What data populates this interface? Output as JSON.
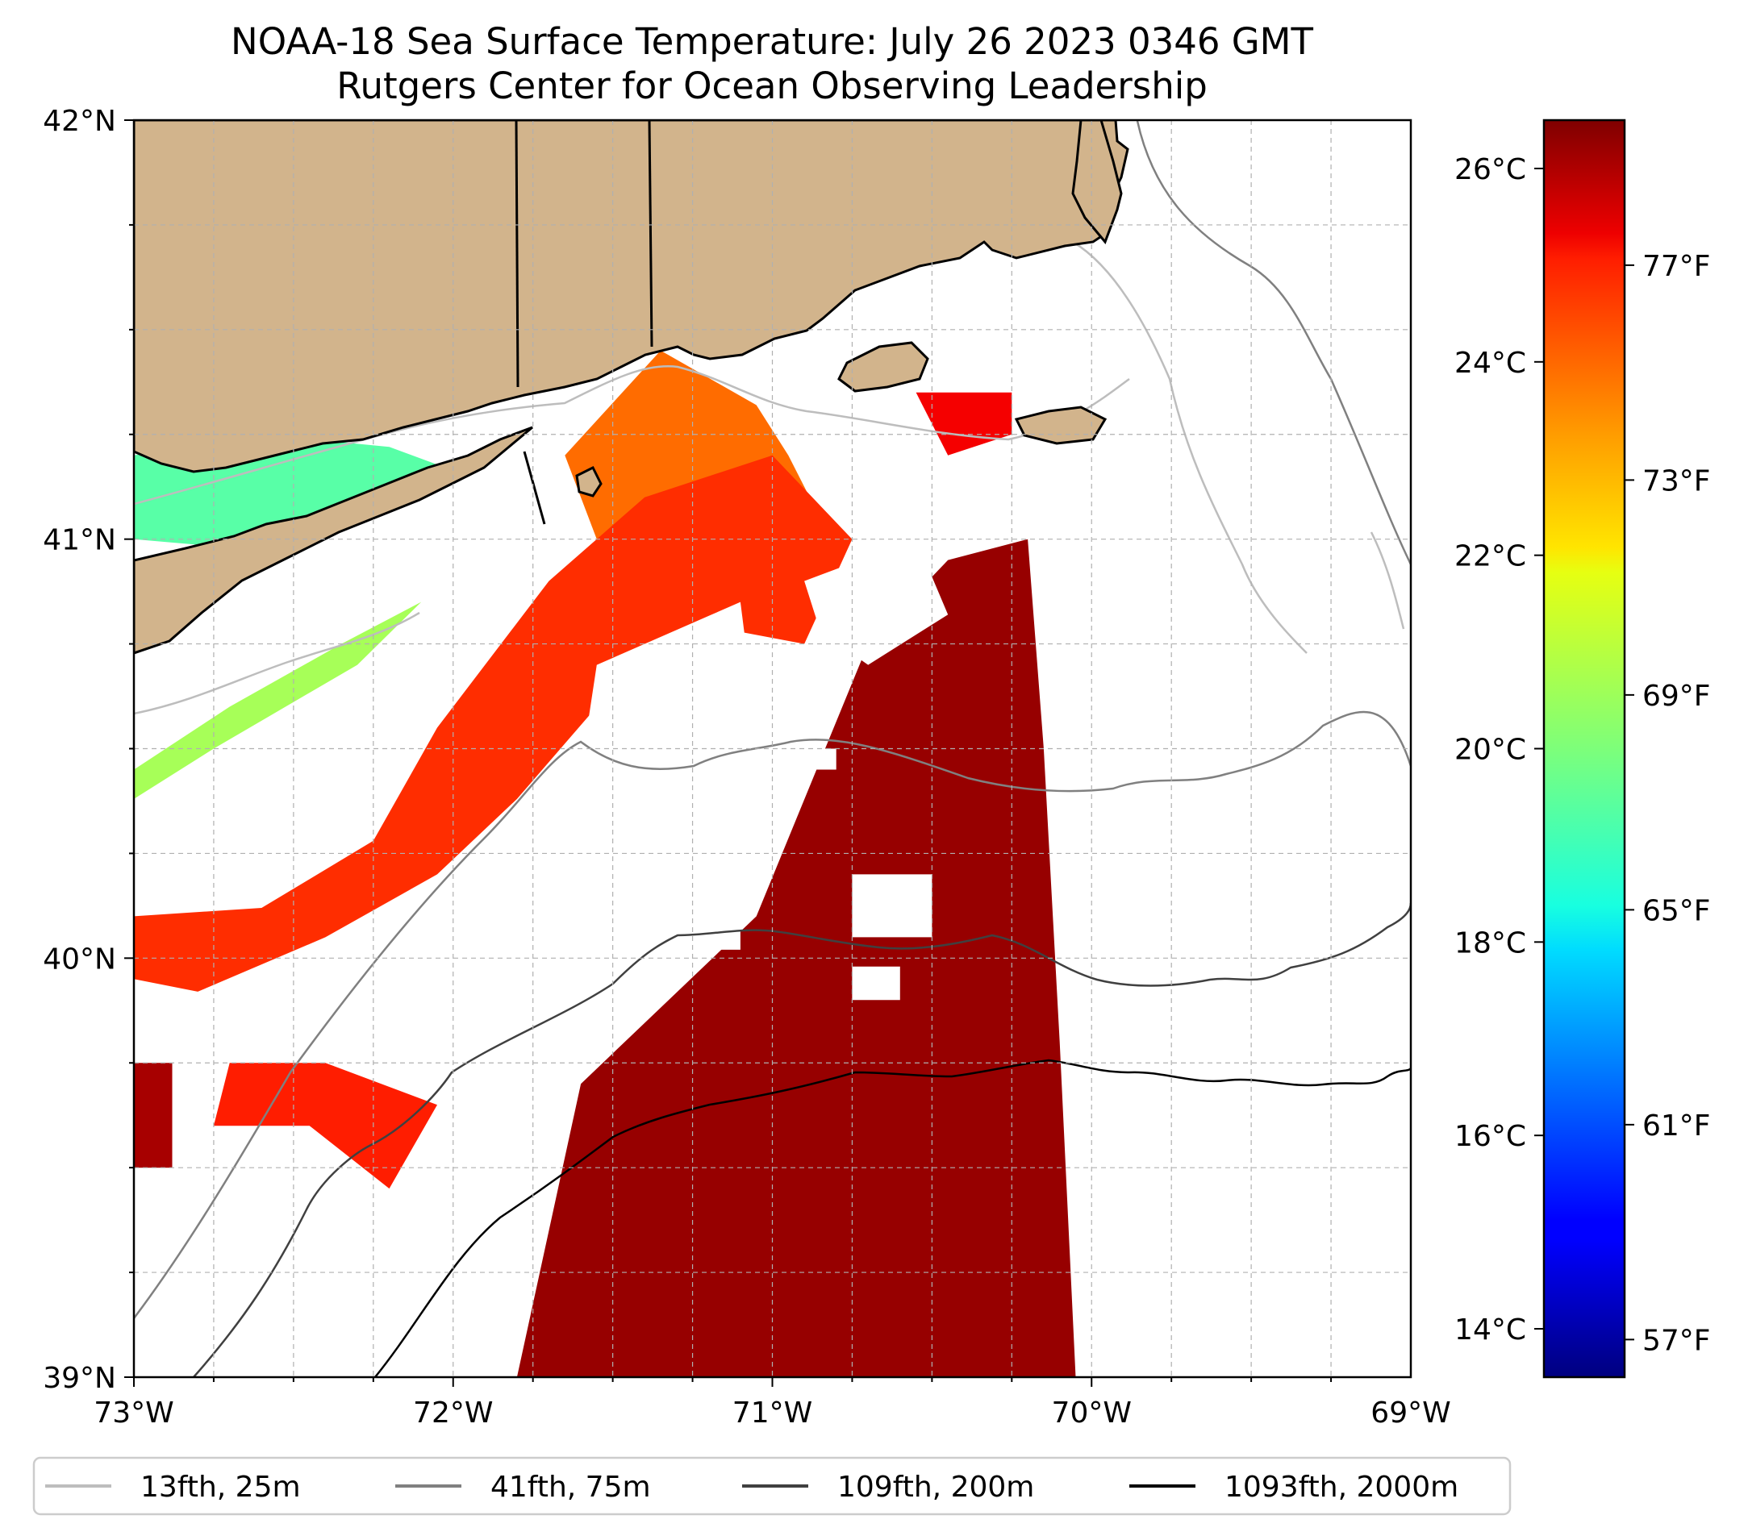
{
  "title": {
    "line1": "NOAA-18 Sea Surface Temperature: July 26 2023 0346 GMT",
    "line2": "Rutgers Center for Ocean Observing Leadership"
  },
  "colors": {
    "land": "#D2B48C",
    "coast": "#000000",
    "grid": "#b0b0b0",
    "iso25": "#bdbdbd",
    "iso75": "#808080",
    "iso200": "#404040",
    "iso2000": "#000000"
  },
  "chart_data": {
    "type": "heatmap",
    "xlim": [
      -73,
      -69
    ],
    "ylim": [
      39,
      42
    ],
    "x_ticks": [
      {
        "value": -73,
        "label": "73°W"
      },
      {
        "value": -72,
        "label": "72°W"
      },
      {
        "value": -71,
        "label": "71°W"
      },
      {
        "value": -70,
        "label": "70°W"
      },
      {
        "value": -69,
        "label": "69°W"
      }
    ],
    "y_ticks": [
      {
        "value": 42,
        "label": "42°N"
      },
      {
        "value": 41,
        "label": "41°N"
      },
      {
        "value": 40,
        "label": "40°N"
      },
      {
        "value": 39,
        "label": "39°N"
      }
    ],
    "colorbar": {
      "colormap": "jet",
      "min_c": 13.5,
      "max_c": 26.5,
      "c_ticks": [
        {
          "value": 14,
          "label": "14°C"
        },
        {
          "value": 16,
          "label": "16°C"
        },
        {
          "value": 18,
          "label": "18°C"
        },
        {
          "value": 20,
          "label": "20°C"
        },
        {
          "value": 22,
          "label": "22°C"
        },
        {
          "value": 24,
          "label": "24°C"
        },
        {
          "value": 26,
          "label": "26°C"
        }
      ],
      "f_ticks": [
        {
          "value": 57,
          "label": "57°F"
        },
        {
          "value": 61,
          "label": "61°F"
        },
        {
          "value": 65,
          "label": "65°F"
        },
        {
          "value": 69,
          "label": "69°F"
        },
        {
          "value": 73,
          "label": "73°F"
        },
        {
          "value": 77,
          "label": "77°F"
        }
      ]
    },
    "legend": [
      {
        "label": "13fth, 25m",
        "color": "#bdbdbd"
      },
      {
        "label": "41fth, 75m",
        "color": "#808080"
      },
      {
        "label": "109fth, 200m",
        "color": "#404040"
      },
      {
        "label": "1093fth, 2000m",
        "color": "#000000"
      }
    ],
    "sst_regions": [
      {
        "name": "long-island-sound",
        "temp_c": 19.5,
        "points": [
          [
            -73,
            41.2
          ],
          [
            -72.6,
            41.25
          ],
          [
            -72.2,
            41.22
          ],
          [
            -71.95,
            41.15
          ],
          [
            -72.25,
            41.05
          ],
          [
            -72.7,
            40.98
          ],
          [
            -73,
            41.0
          ]
        ]
      },
      {
        "name": "block-island-sound",
        "temp_c": 23.5,
        "points": [
          [
            -71.65,
            41.2
          ],
          [
            -71.35,
            41.45
          ],
          [
            -71.05,
            41.32
          ],
          [
            -70.95,
            41.2
          ],
          [
            -70.85,
            41.05
          ],
          [
            -71.25,
            40.95
          ],
          [
            -71.55,
            41.0
          ]
        ]
      },
      {
        "name": "shelf-band",
        "temp_c": 24.3,
        "points": [
          [
            -72.05,
            40.55
          ],
          [
            -71.7,
            40.9
          ],
          [
            -71.4,
            41.1
          ],
          [
            -71.0,
            41.2
          ],
          [
            -70.75,
            41.0
          ],
          [
            -70.9,
            40.75
          ],
          [
            -71.25,
            40.8
          ],
          [
            -71.55,
            40.6
          ],
          [
            -71.8,
            40.38
          ],
          [
            -72.05,
            40.2
          ],
          [
            -72.4,
            40.05
          ],
          [
            -72.8,
            39.92
          ],
          [
            -73,
            39.95
          ],
          [
            -73,
            40.1
          ],
          [
            -72.6,
            40.12
          ],
          [
            -72.25,
            40.28
          ]
        ]
      },
      {
        "name": "nearshore-li",
        "temp_c": 20.5,
        "points": [
          [
            -72.75,
            40.5
          ],
          [
            -72.3,
            40.7
          ],
          [
            -72.1,
            40.85
          ],
          [
            -72.35,
            40.75
          ],
          [
            -72.7,
            40.6
          ],
          [
            -73,
            40.45
          ],
          [
            -73,
            40.38
          ]
        ]
      },
      {
        "name": "offshore-warm",
        "temp_c": 26.2,
        "points": [
          [
            -71.8,
            39.0
          ],
          [
            -71.6,
            39.7
          ],
          [
            -71.05,
            40.1
          ],
          [
            -70.7,
            40.75
          ],
          [
            -70.45,
            40.95
          ],
          [
            -70.2,
            41.0
          ],
          [
            -70.15,
            40.5
          ],
          [
            -70.1,
            39.8
          ],
          [
            -70.05,
            39.0
          ]
        ]
      },
      {
        "name": "southwest-band",
        "temp_c": 24.5,
        "points": [
          [
            -72.2,
            39.45
          ],
          [
            -72.05,
            39.65
          ],
          [
            -72.4,
            39.75
          ],
          [
            -72.7,
            39.75
          ],
          [
            -72.75,
            39.6
          ],
          [
            -72.45,
            39.6
          ]
        ]
      },
      {
        "name": "west-edge-warm",
        "temp_c": 26.0,
        "points": [
          [
            -73,
            39.5
          ],
          [
            -72.88,
            39.5
          ],
          [
            -72.88,
            39.75
          ],
          [
            -73,
            39.75
          ]
        ]
      },
      {
        "name": "cape-warm",
        "temp_c": 25.0,
        "points": [
          [
            -70.55,
            41.35
          ],
          [
            -70.25,
            41.35
          ],
          [
            -70.25,
            41.25
          ],
          [
            -70.45,
            41.2
          ]
        ]
      }
    ],
    "cloud_gaps": [
      {
        "name": "gap-1",
        "points": [
          [
            -71.55,
            40.7
          ],
          [
            -71.1,
            40.85
          ],
          [
            -71.05,
            40.55
          ],
          [
            -71.35,
            40.4
          ],
          [
            -71.6,
            40.45
          ]
        ]
      },
      {
        "name": "gap-2",
        "points": [
          [
            -70.9,
            40.9
          ],
          [
            -70.55,
            41.0
          ],
          [
            -70.45,
            40.82
          ],
          [
            -70.7,
            40.7
          ],
          [
            -70.85,
            40.78
          ]
        ]
      },
      {
        "name": "gap-3",
        "points": [
          [
            -70.75,
            40.2
          ],
          [
            -70.5,
            40.2
          ],
          [
            -70.5,
            40.05
          ],
          [
            -70.75,
            40.05
          ]
        ]
      },
      {
        "name": "gap-4",
        "points": [
          [
            -71.22,
            40.2
          ],
          [
            -71.1,
            40.2
          ],
          [
            -71.1,
            40.02
          ],
          [
            -71.22,
            40.02
          ]
        ]
      },
      {
        "name": "gap-5",
        "points": [
          [
            -70.75,
            39.98
          ],
          [
            -70.6,
            39.98
          ],
          [
            -70.6,
            39.9
          ],
          [
            -70.75,
            39.9
          ]
        ]
      },
      {
        "name": "gap-6",
        "points": [
          [
            -70.9,
            40.5
          ],
          [
            -70.8,
            40.5
          ],
          [
            -70.8,
            40.45
          ],
          [
            -70.9,
            40.45
          ]
        ]
      }
    ]
  }
}
